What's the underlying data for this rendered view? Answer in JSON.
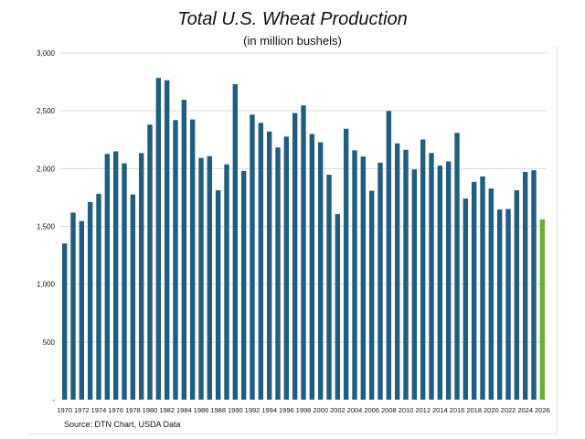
{
  "chart_data": {
    "type": "bar",
    "title": "Total U.S. Wheat Production",
    "subtitle": "(in million bushels)",
    "source": "Source: DTN Chart, USDA Data",
    "xlabel": "",
    "ylabel": "",
    "ylim": [
      0,
      3000
    ],
    "yticks": [
      0,
      500,
      1000,
      1500,
      2000,
      2500,
      3000
    ],
    "ytick_labels": [
      "-",
      "500",
      "1,000",
      "1,500",
      "2,000",
      "2,500",
      "3,000"
    ],
    "grid": true,
    "legend": "none",
    "categories": [
      "1970",
      "1971",
      "1972",
      "1973",
      "1974",
      "1975",
      "1976",
      "1977",
      "1978",
      "1979",
      "1980",
      "1981",
      "1982",
      "1983",
      "1984",
      "1985",
      "1986",
      "1987",
      "1988",
      "1989",
      "1990",
      "1991",
      "1992",
      "1993",
      "1994",
      "1995",
      "1996",
      "1997",
      "1998",
      "1999",
      "2000",
      "2001",
      "2002",
      "2003",
      "2004",
      "2005",
      "2006",
      "2007",
      "2008",
      "2009",
      "2010",
      "2011",
      "2012",
      "2013",
      "2014",
      "2015",
      "2016",
      "2017",
      "2018",
      "2019",
      "2020",
      "2021",
      "2022",
      "2023",
      "2024",
      "2025"
    ],
    "xtick_labels": [
      "1970",
      "1972",
      "1974",
      "1976",
      "1978",
      "1980",
      "1982",
      "1984",
      "1986",
      "1988",
      "1990",
      "1992",
      "1994",
      "1996",
      "1998",
      "2000",
      "2002",
      "2004",
      "2006",
      "2008",
      "2010",
      "2012",
      "2014",
      "2016",
      "2018",
      "2020",
      "2022",
      "2024",
      "2026"
    ],
    "values": [
      1352,
      1619,
      1546,
      1711,
      1782,
      2127,
      2149,
      2046,
      1776,
      2134,
      2381,
      2785,
      2765,
      2420,
      2595,
      2425,
      2092,
      2108,
      1812,
      2037,
      2730,
      1980,
      2467,
      2396,
      2321,
      2183,
      2277,
      2481,
      2547,
      2299,
      2228,
      1947,
      1606,
      2345,
      2158,
      2105,
      1808,
      2051,
      2499,
      2218,
      2163,
      1993,
      2252,
      2135,
      2026,
      2062,
      2309,
      1741,
      1885,
      1932,
      1828,
      1646,
      1650,
      1812,
      1971,
      1985
    ],
    "forecast": {
      "category": "2026",
      "value": 1561
    },
    "colors": {
      "bar": "#1f5e80",
      "forecast": "#66b032",
      "grid": "#d9d9d9",
      "text": "#111111"
    }
  }
}
